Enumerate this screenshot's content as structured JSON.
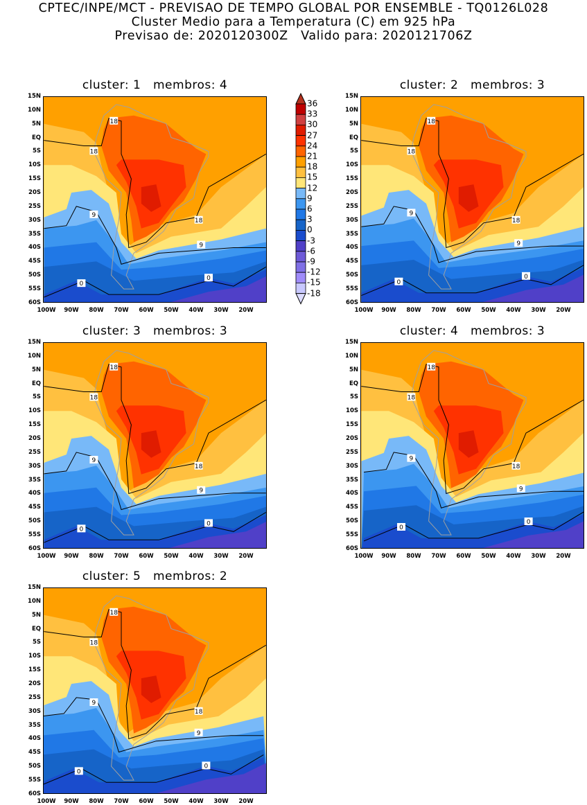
{
  "header": {
    "line1": "CPTEC/INPE/MCT - PREVISAO DE TEMPO GLOBAL POR ENSEMBLE - TQ0126L028",
    "line2": "Cluster Medio para a Temperatura (C) em 925 hPa",
    "line3": "Previsao de: 2020120300Z   Valido para: 2020121706Z"
  },
  "axes": {
    "lat_labels": [
      "15N",
      "10N",
      "5N",
      "EQ",
      "5S",
      "10S",
      "15S",
      "20S",
      "25S",
      "30S",
      "35S",
      "40S",
      "45S",
      "50S",
      "55S",
      "60S"
    ],
    "lon_labels": [
      "100W",
      "90W",
      "80W",
      "70W",
      "60W",
      "50W",
      "40W",
      "30W",
      "20W"
    ]
  },
  "colorbar": {
    "labels": [
      "36",
      "33",
      "30",
      "27",
      "24",
      "21",
      "18",
      "15",
      "12",
      "9",
      "6",
      "3",
      "0",
      "-3",
      "-6",
      "-9",
      "-12",
      "-15",
      "-18"
    ],
    "colors": [
      "#b4321e",
      "#bf0000",
      "#d04040",
      "#e01c00",
      "#ff3200",
      "#ff6400",
      "#ffa000",
      "#ffc040",
      "#ffe678",
      "#78b9f8",
      "#3c96f0",
      "#2078e6",
      "#1664c8",
      "#1a4ccd",
      "#5040c8",
      "#6e5ad8",
      "#8070e6",
      "#a08cfa",
      "#c8c8ff",
      "#dcdcff"
    ]
  },
  "panels": [
    {
      "title": "cluster: 1   membros: 4",
      "contour_labels": [
        "18",
        "18",
        "18",
        "9",
        "9",
        "0",
        "0"
      ]
    },
    {
      "title": "cluster: 2   membros: 3",
      "contour_labels": [
        "18",
        "18",
        "18",
        "9",
        "9",
        "0",
        "0"
      ]
    },
    {
      "title": "cluster: 3   membros: 3",
      "contour_labels": [
        "18",
        "18",
        "18",
        "9",
        "9",
        "0",
        "0"
      ]
    },
    {
      "title": "cluster: 4   membros: 3",
      "contour_labels": [
        "18",
        "18",
        "18",
        "9",
        "9",
        "0",
        "0"
      ]
    },
    {
      "title": "cluster: 5   membros: 2",
      "contour_labels": [
        "18",
        "18",
        "18",
        "9",
        "9",
        "0",
        "0"
      ]
    }
  ]
}
